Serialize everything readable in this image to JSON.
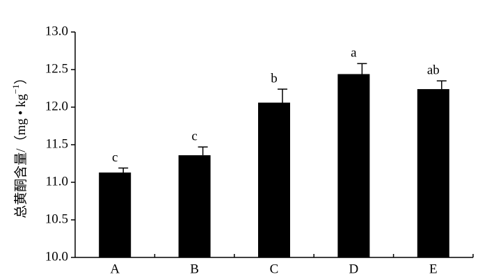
{
  "chart_data": {
    "type": "bar",
    "ylabel": {
      "text": "总黄酮含量/（mg • kg",
      "superscript": "−1",
      "end": "）"
    },
    "categories": [
      "A",
      "B",
      "C",
      "D",
      "E"
    ],
    "values": [
      11.13,
      11.36,
      12.06,
      12.44,
      12.24
    ],
    "errors": [
      0.06,
      0.11,
      0.18,
      0.14,
      0.11
    ],
    "significance_letters": [
      "c",
      "c",
      "b",
      "a",
      "ab"
    ],
    "color": "#000000",
    "ylim": [
      10.0,
      13.0
    ],
    "yticks": [
      {
        "value": 10,
        "label": "10.0"
      },
      {
        "value": 10.5,
        "label": "10.5"
      },
      {
        "value": 11,
        "label": "11.0"
      },
      {
        "value": 11.5,
        "label": "11.5"
      },
      {
        "value": 12,
        "label": "12.0"
      },
      {
        "value": 12.5,
        "label": "12.5"
      },
      {
        "value": 13,
        "label": "13.0"
      }
    ]
  }
}
